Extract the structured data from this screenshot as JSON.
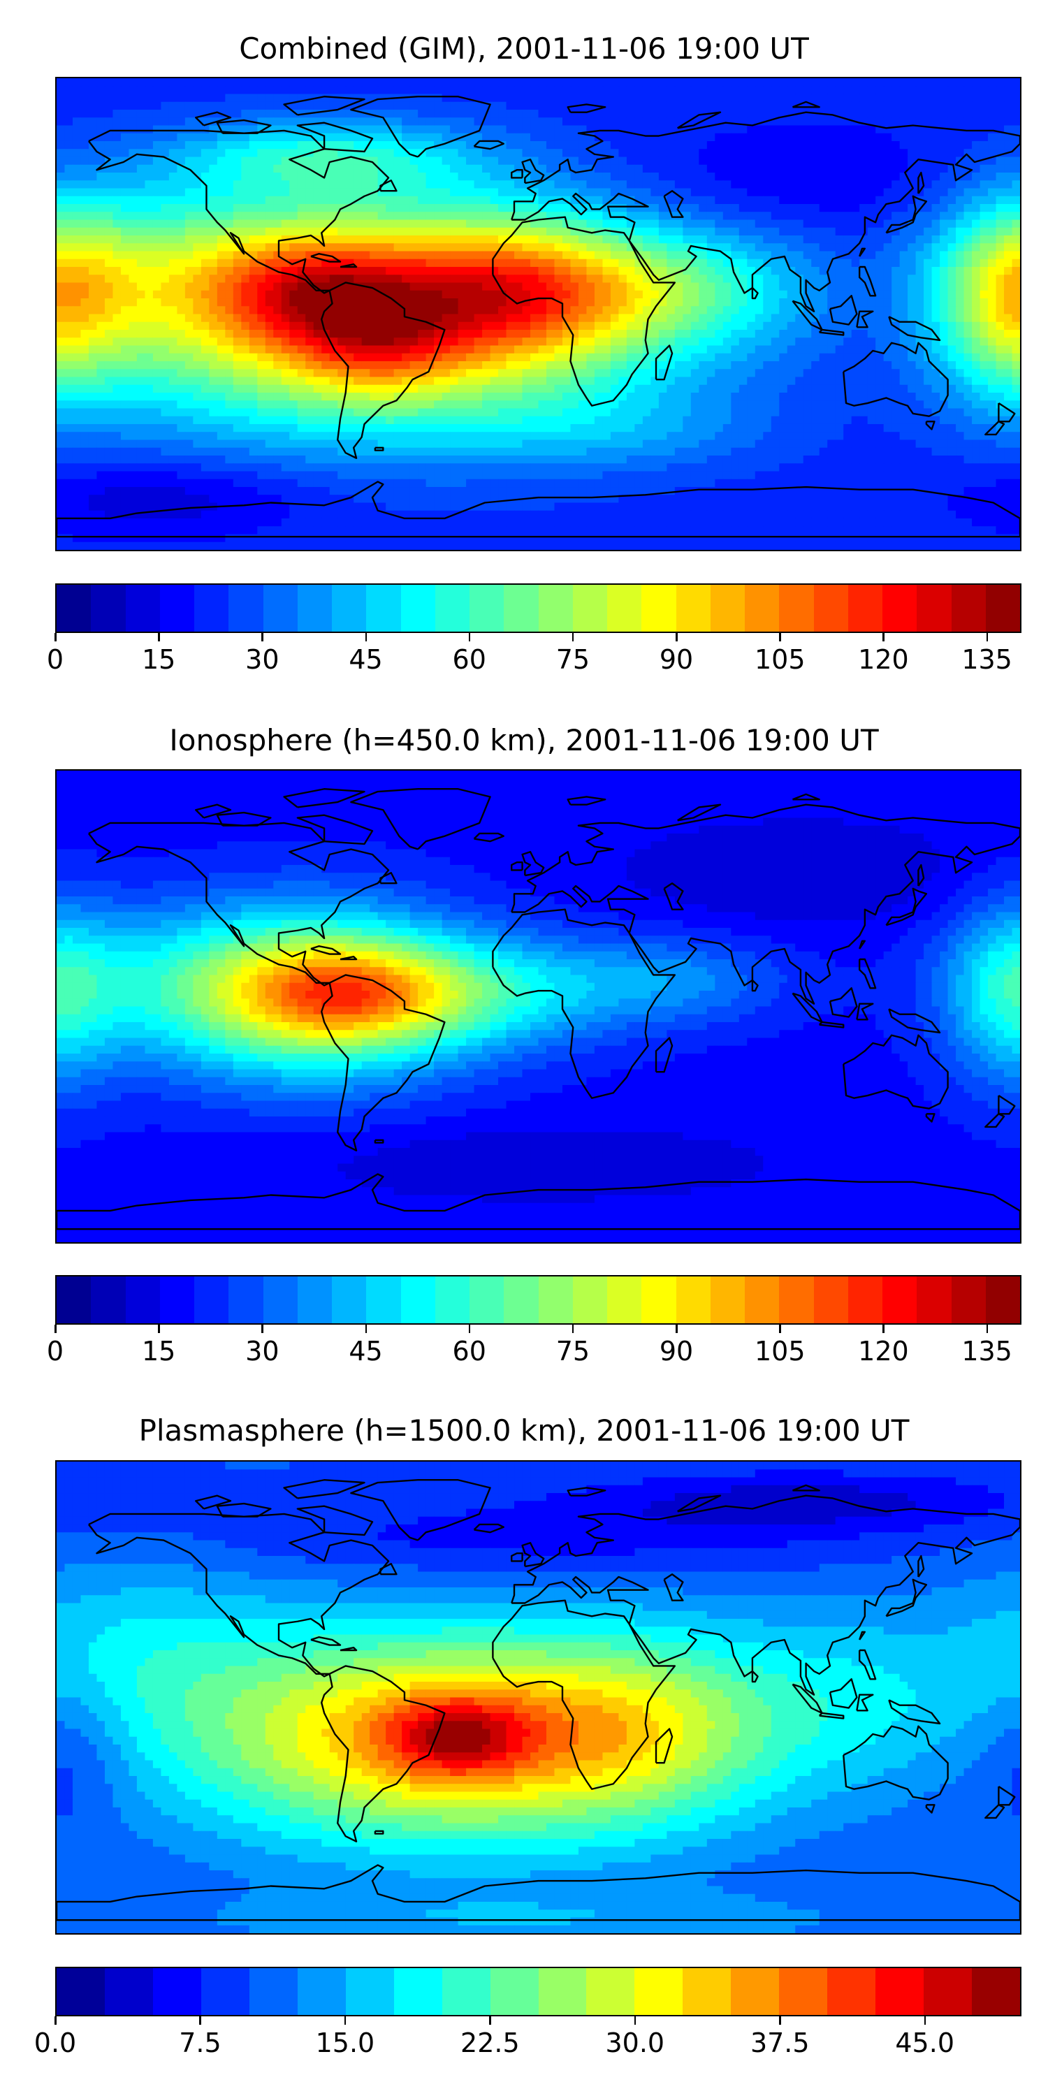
{
  "panels": [
    {
      "title": "Combined (GIM), 2001-11-06 19:00 UT",
      "colorbar": {
        "min": 0,
        "max": 140,
        "levels": 28,
        "tick_labels": [
          "0",
          "15",
          "30",
          "45",
          "60",
          "75",
          "90",
          "105",
          "120",
          "135"
        ],
        "tick_values": [
          0,
          15,
          30,
          45,
          60,
          75,
          90,
          105,
          120,
          135
        ]
      },
      "field": {
        "background": 22,
        "blobs": [
          {
            "lon": -60,
            "lat": 0,
            "value": 85,
            "slon": 75,
            "slat": 30
          },
          {
            "lon": -85,
            "lat": 10,
            "value": 30,
            "slon": 25,
            "slat": 15
          },
          {
            "lon": -60,
            "lat": -10,
            "value": 22,
            "slon": 20,
            "slat": 15
          },
          {
            "lon": -10,
            "lat": 10,
            "value": 35,
            "slon": 30,
            "slat": 18
          },
          {
            "lon": 50,
            "lat": 10,
            "value": 25,
            "slon": 35,
            "slat": 15
          },
          {
            "lon": 178,
            "lat": 5,
            "value": 45,
            "slon": 20,
            "slat": 25
          },
          {
            "lon": -150,
            "lat": 20,
            "value": 18,
            "slon": 40,
            "slat": 20
          },
          {
            "lon": -80,
            "lat": 60,
            "value": 28,
            "slon": 40,
            "slat": 10
          },
          {
            "lon": 30,
            "lat": -45,
            "value": 10,
            "slon": 40,
            "slat": 10
          },
          {
            "lon": -140,
            "lat": -70,
            "value": -12,
            "slon": 40,
            "slat": 10
          },
          {
            "lon": 90,
            "lat": 50,
            "value": -8,
            "slon": 50,
            "slat": 15
          }
        ]
      }
    },
    {
      "title": "Ionosphere  (h=450.0 km), 2001-11-06 19:00 UT",
      "colorbar": {
        "min": 0,
        "max": 140,
        "levels": 28,
        "tick_labels": [
          "0",
          "15",
          "30",
          "45",
          "60",
          "75",
          "90",
          "105",
          "120",
          "135"
        ],
        "tick_values": [
          0,
          15,
          30,
          45,
          60,
          75,
          90,
          105,
          120,
          135
        ]
      },
      "field": {
        "background": 18,
        "blobs": [
          {
            "lon": -85,
            "lat": 5,
            "value": 68,
            "slon": 40,
            "slat": 22
          },
          {
            "lon": -70,
            "lat": 5,
            "value": 25,
            "slon": 25,
            "slat": 12
          },
          {
            "lon": -20,
            "lat": 5,
            "value": 28,
            "slon": 35,
            "slat": 15
          },
          {
            "lon": 50,
            "lat": 10,
            "value": 18,
            "slon": 30,
            "slat": 12
          },
          {
            "lon": 178,
            "lat": 5,
            "value": 30,
            "slon": 18,
            "slat": 25
          },
          {
            "lon": -150,
            "lat": 10,
            "value": 15,
            "slon": 40,
            "slat": 20
          },
          {
            "lon": 100,
            "lat": 50,
            "value": -8,
            "slon": 50,
            "slat": 15
          },
          {
            "lon": 0,
            "lat": -60,
            "value": -8,
            "slon": 60,
            "slat": 10
          }
        ]
      }
    },
    {
      "title": "Plasmasphere (h=1500.0 km), 2001-11-06 19:00 UT",
      "colorbar": {
        "min": 0,
        "max": 50,
        "levels": 20,
        "tick_labels": [
          "0.0",
          "7.5",
          "15.0",
          "22.5",
          "30.0",
          "37.5",
          "45.0"
        ],
        "tick_values": [
          0,
          7.5,
          15,
          22.5,
          30,
          37.5,
          45
        ]
      },
      "field": {
        "background": 10,
        "blobs": [
          {
            "lon": -30,
            "lat": -15,
            "value": 28,
            "slon": 70,
            "slat": 28
          },
          {
            "lon": -30,
            "lat": -15,
            "value": 12,
            "slon": 18,
            "slat": 10
          },
          {
            "lon": 40,
            "lat": -10,
            "value": 6,
            "slon": 30,
            "slat": 25
          },
          {
            "lon": -150,
            "lat": 20,
            "value": 6,
            "slon": 40,
            "slat": 25
          },
          {
            "lon": 120,
            "lat": 0,
            "value": 6,
            "slon": 40,
            "slat": 25
          },
          {
            "lon": 0,
            "lat": 60,
            "value": -4,
            "slon": 90,
            "slat": 10
          },
          {
            "lon": 100,
            "lat": 75,
            "value": -6,
            "slon": 60,
            "slat": 8
          },
          {
            "lon": -175,
            "lat": -20,
            "value": -5,
            "slon": 15,
            "slat": 20
          },
          {
            "lon": 0,
            "lat": -85,
            "value": 4,
            "slon": 100,
            "slat": 8
          }
        ]
      }
    }
  ],
  "coastline_color": "#000000"
}
